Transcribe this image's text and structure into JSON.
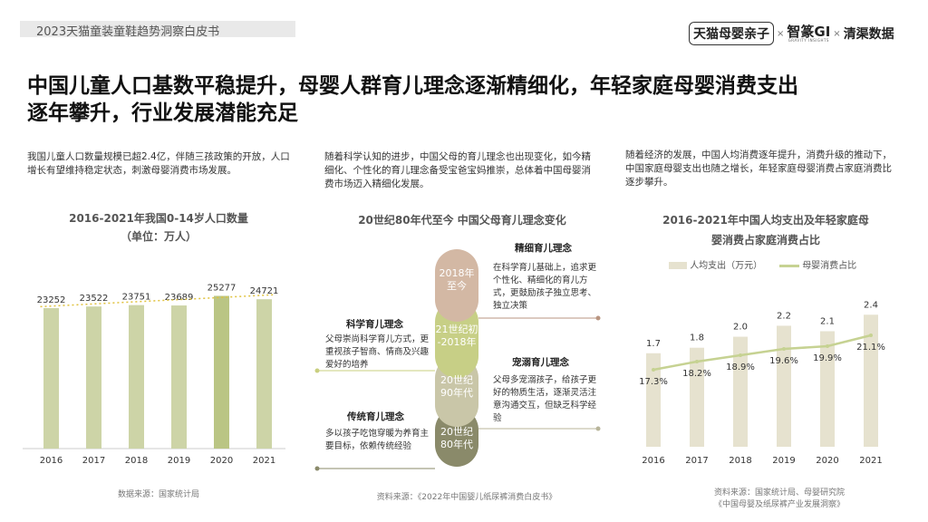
{
  "header": {
    "report_title": "2023天猫童装童鞋趋势洞察白皮书"
  },
  "brand": {
    "tmall": "天猫母婴亲子",
    "sep1": "×",
    "gi_main": "智篆GI",
    "gi_sub": "GRAVITY INSIGHTS",
    "sep2": "×",
    "qingqu": "清渠数据"
  },
  "title": {
    "line1": "中国儿童人口基数平稳提升，母婴人群育儿理念逐渐精细化，年轻家庭母婴消费支出",
    "line2": "逐年攀升，行业发展潜能充足"
  },
  "col1": {
    "intro": "我国儿童人口数量规模已超2.4亿，伴随三孩政策的开放，人口增长有望维持稳定状态，刺激母婴消费市场发展。",
    "chart_title": "2016-2021年我国0-14岁人口数量",
    "chart_unit": "（单位：万人）",
    "source": "数据来源：国家统计局"
  },
  "col2": {
    "intro": "随着科学认知的进步，中国父母的育儿理念也出现变化，如今精细化、个性化的育儿理念备受宝爸宝妈推崇，总体着中国母婴消费市场迈入精细化发展。",
    "chart_title": "20世纪80年代至今 中国父母育儿理念变化",
    "source": "资料来源：《2022年中国婴儿纸尿裤消费白皮书》",
    "stages": [
      {
        "label_line1": "2018年",
        "label_line2": "至今",
        "color": "#d3b8a4"
      },
      {
        "label_line1": "21世纪初",
        "label_line2": "-2018年",
        "color": "#c7cf86"
      },
      {
        "label_line1": "20世纪",
        "label_line2": "90年代",
        "color": "#c9c6a8"
      },
      {
        "label_line1": "20世纪",
        "label_line2": "80年代",
        "color": "#8a8a6a"
      }
    ],
    "concepts": [
      {
        "title": "精细育儿理念",
        "desc": "在科学育儿基础上，追求更个性化、精细化的育儿方式，更鼓励孩子独立思考、独立决策"
      },
      {
        "title": "科学育儿理念",
        "desc": "父母崇尚科学育儿方式，更重视孩子智商、情商及兴趣爱好的培养"
      },
      {
        "title": "宠溺育儿理念",
        "desc": "父母多宠溺孩子，给孩子更好的物质生活，逐渐灵活注意沟通交互，但缺乏科学经验"
      },
      {
        "title": "传统育儿理念",
        "desc": "多以孩子吃饱穿暖为养育主要目标，依赖传统经验"
      }
    ]
  },
  "col3": {
    "intro": "随着经济的发展，中国人均消费逐年提升，消费升级的推动下，中国家庭母婴支出也随之增长，年轻家庭母婴消费占家庭消费比逐步攀升。",
    "chart_title_line1": "2016-2021年中国人均支出及年轻家庭母",
    "chart_title_line2": "婴消费占家庭消费占比",
    "source_line1": "资料来源：国家统计局、母婴研究院",
    "source_line2": "《中国母婴及纸尿裤产业发展洞察》"
  },
  "chart_data": [
    {
      "type": "bar",
      "title": "2016-2021年我国0-14岁人口数量",
      "unit": "万人",
      "categories": [
        "2016",
        "2017",
        "2018",
        "2019",
        "2020",
        "2021"
      ],
      "values": [
        23252,
        23522,
        23751,
        23689,
        25277,
        24721
      ],
      "trendline": "linear, dotted",
      "colors": {
        "bar": "#cdd4a7",
        "bar_highlight": "#bac584",
        "trend": "#e0c23e"
      }
    },
    {
      "type": "bar+line",
      "title": "2016-2021年中国人均支出及年轻家庭母婴消费占家庭消费占比",
      "categories": [
        "2016",
        "2017",
        "2018",
        "2019",
        "2020",
        "2021"
      ],
      "series": [
        {
          "name": "人均支出（万元）",
          "type": "bar",
          "values": [
            1.7,
            1.8,
            2.0,
            2.2,
            2.1,
            2.4
          ],
          "labels": [
            "1.7",
            "1.8",
            "2.0",
            "2.2",
            "2.1",
            "2.4"
          ],
          "color": "#e6e2cf"
        },
        {
          "name": "母婴消费占比",
          "type": "line",
          "values": [
            17.3,
            18.2,
            18.9,
            19.6,
            19.9,
            21.1
          ],
          "labels": [
            "17.3%",
            "18.2%",
            "18.9%",
            "19.6%",
            "19.9%",
            "21.1%"
          ],
          "color": "#c6d292"
        }
      ]
    }
  ]
}
